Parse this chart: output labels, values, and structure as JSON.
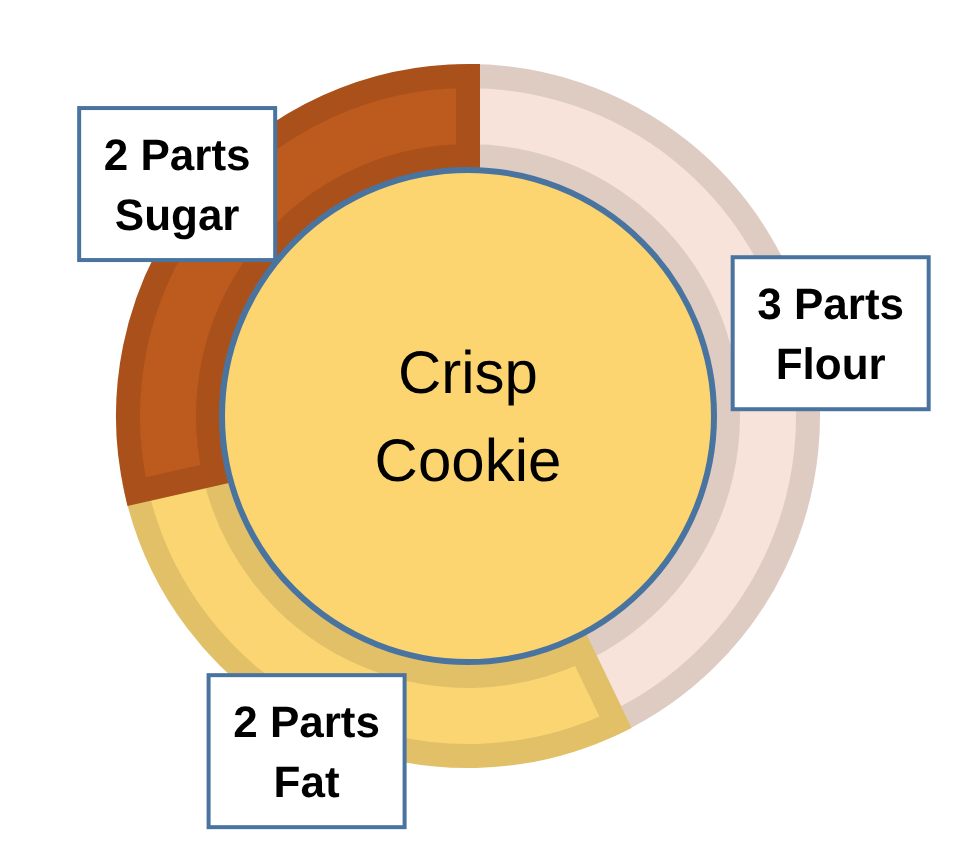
{
  "chart_data": {
    "type": "donut",
    "title": "Crisp Cookie",
    "categories": [
      "Flour",
      "Fat",
      "Sugar"
    ],
    "values": [
      3,
      2,
      2
    ],
    "value_labels": [
      "3 Parts",
      "2 Parts",
      "2 Parts"
    ],
    "colors": [
      "#f7e3d9",
      "#fbd572",
      "#bd5a1e"
    ]
  }
}
